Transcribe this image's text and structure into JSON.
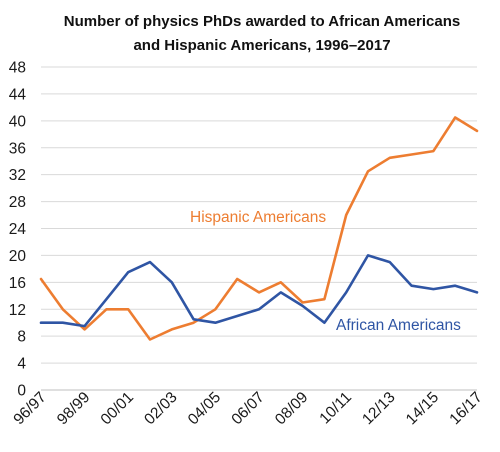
{
  "chart_data": {
    "type": "line",
    "title_lines": [
      "Number of physics PhDs awarded to African Americans",
      "and Hispanic Americans, 1996–2017"
    ],
    "x": [
      "96/97",
      "97/98",
      "98/99",
      "99/00",
      "00/01",
      "01/02",
      "02/03",
      "03/04",
      "04/05",
      "05/06",
      "06/07",
      "07/08",
      "08/09",
      "09/10",
      "10/11",
      "11/12",
      "12/13",
      "13/14",
      "14/15",
      "15/16",
      "16/17"
    ],
    "x_tick_labels": [
      "96/97",
      "98/99",
      "00/01",
      "02/03",
      "04/05",
      "06/07",
      "08/09",
      "10/11",
      "12/13",
      "14/15",
      "16/17"
    ],
    "ylim": [
      0,
      48
    ],
    "y_ticks": [
      0,
      4,
      8,
      12,
      16,
      20,
      24,
      28,
      32,
      36,
      40,
      44,
      48
    ],
    "grid": "horizontal",
    "legend": "inline labels",
    "series": [
      {
        "name": "Hispanic Americans",
        "color": "#ED7D31",
        "values": [
          16.5,
          12,
          9,
          12,
          12,
          7.5,
          9,
          10,
          12,
          16.5,
          14.5,
          16,
          13,
          13.5,
          26,
          32.5,
          34.5,
          35,
          35.5,
          40.5,
          38.5
        ]
      },
      {
        "name": "African Americans",
        "color": "#2F55A4",
        "values": [
          10,
          10,
          9.5,
          13.5,
          17.5,
          19,
          16,
          10.5,
          10,
          11,
          12,
          14.5,
          12.5,
          10,
          14.5,
          20,
          19,
          15.5,
          15,
          15.5,
          14.5
        ]
      }
    ]
  }
}
